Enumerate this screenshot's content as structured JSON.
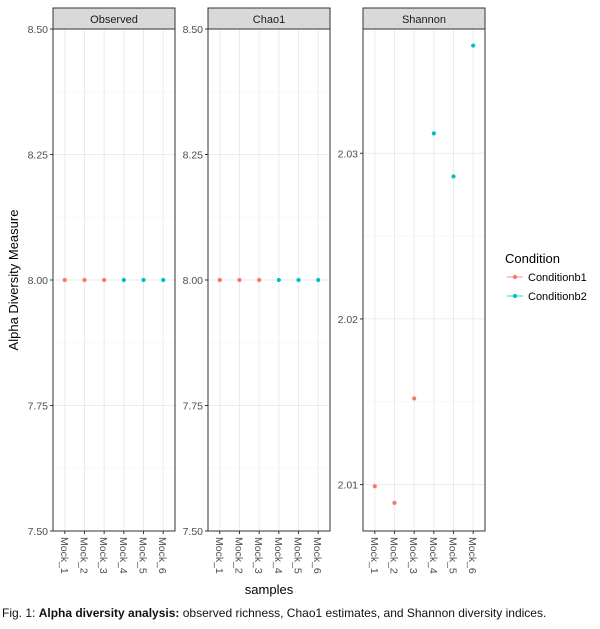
{
  "chart_data": {
    "type": "scatter",
    "ylabel": "Alpha Diversity Measure",
    "xlabel": "samples",
    "categories": [
      "Mock_1",
      "Mock_2",
      "Mock_3",
      "Mock_4",
      "Mock_5",
      "Mock_6"
    ],
    "sample_condition": [
      "Conditionb1",
      "Conditionb1",
      "Conditionb1",
      "Conditionb2",
      "Conditionb2",
      "Conditionb2"
    ],
    "legend": {
      "title": "Condition",
      "position": "right",
      "entries": [
        {
          "label": "Conditionb1",
          "color": "#F8766D"
        },
        {
          "label": "Conditionb2",
          "color": "#00BFC4"
        }
      ]
    },
    "grid": true,
    "panels": [
      {
        "strip": "Observed",
        "ylim": [
          7.5,
          8.5
        ],
        "yticks": [
          7.5,
          7.75,
          8.0,
          8.25,
          8.5
        ],
        "ytick_labels": [
          "7.50",
          "7.75",
          "8.00",
          "8.25",
          "8.50"
        ],
        "values": [
          8,
          8,
          8,
          8,
          8,
          8
        ]
      },
      {
        "strip": "Chao1",
        "ylim": [
          7.5,
          8.5
        ],
        "yticks": [
          7.5,
          7.75,
          8.0,
          8.25,
          8.5
        ],
        "ytick_labels": [
          "7.50",
          "7.75",
          "8.00",
          "8.25",
          "8.50"
        ],
        "values": [
          8,
          8,
          8,
          8,
          8,
          8
        ]
      },
      {
        "strip": "Shannon",
        "ylim": [
          2.0072,
          2.0375
        ],
        "yticks": [
          2.01,
          2.02,
          2.03
        ],
        "ytick_labels": [
          "2.01",
          "2.02",
          "2.03"
        ],
        "values": [
          2.0099,
          2.0089,
          2.0152,
          2.0312,
          2.0286,
          2.0365
        ]
      }
    ]
  },
  "caption": {
    "prefix": "Fig. 1: ",
    "bold": "Alpha diversity analysis:",
    "rest": " observed richness, Chao1 estimates, and Shannon diversity indices."
  }
}
